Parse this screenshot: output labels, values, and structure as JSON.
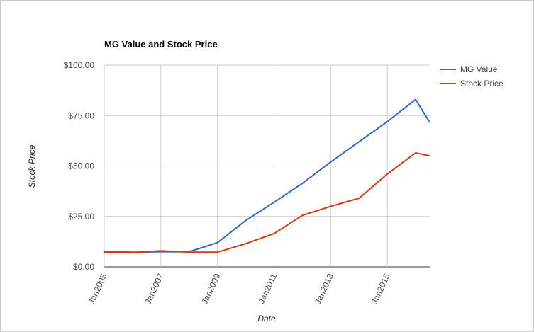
{
  "chart_data": {
    "type": "line",
    "title": "MG Value and Stock Price",
    "x_label": "Date",
    "y_label": "Stock Price",
    "x": [
      "2005-01",
      "2006-01",
      "2007-01",
      "2008-01",
      "2009-01",
      "2010-01",
      "2011-01",
      "2012-01",
      "2013-01",
      "2014-01",
      "2015-01",
      "2016-01",
      "2016-07"
    ],
    "series": [
      {
        "name": "MG Value",
        "color": "#3366cc",
        "values": [
          7.7,
          7.3,
          7.5,
          7.5,
          12,
          23,
          32,
          41.4,
          52,
          62,
          72,
          83,
          71.6
        ]
      },
      {
        "name": "Stock Price",
        "color": "#dc3912",
        "values": [
          7,
          7,
          8,
          7.3,
          7.3,
          11.5,
          16.5,
          25.5,
          30,
          34,
          46,
          56.5,
          55
        ]
      }
    ],
    "xlim": [
      "2005-01",
      "2016-07"
    ],
    "xticks": [
      {
        "value": "2005-01",
        "label": "Jan2005"
      },
      {
        "value": "2007-01",
        "label": "Jan2007"
      },
      {
        "value": "2009-01",
        "label": "Jan2009"
      },
      {
        "value": "2011-01",
        "label": "Jan2011"
      },
      {
        "value": "2013-01",
        "label": "Jan2013"
      },
      {
        "value": "2015-01",
        "label": "Jan2015"
      }
    ],
    "ylim": [
      0,
      100
    ],
    "yticks": [
      {
        "value": 0,
        "label": "$0.00"
      },
      {
        "value": 25,
        "label": "$25.00"
      },
      {
        "value": 50,
        "label": "$50.00"
      },
      {
        "value": 75,
        "label": "$75.00"
      },
      {
        "value": 100,
        "label": "$100.00"
      }
    ],
    "grid": true,
    "legend": "right"
  }
}
